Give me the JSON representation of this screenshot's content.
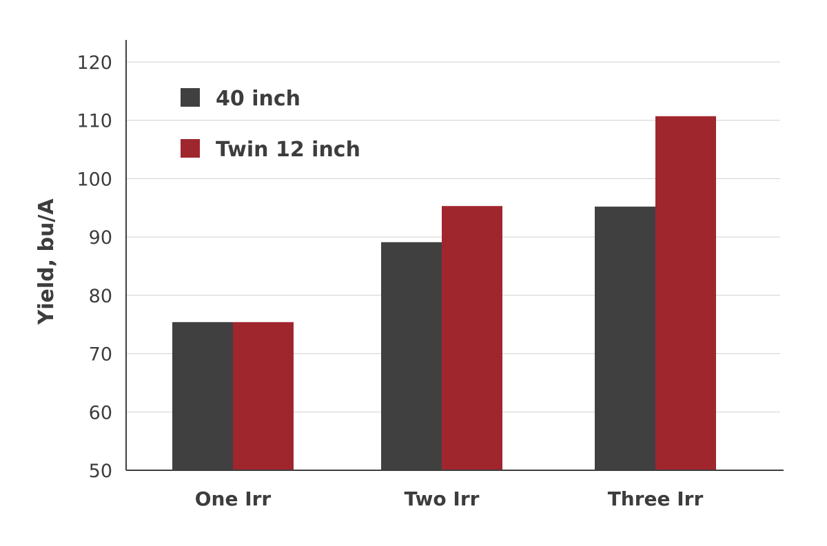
{
  "chart_data": {
    "type": "bar",
    "title": "",
    "xlabel": "",
    "ylabel": "Yield, bu/A",
    "ylim": [
      50,
      120
    ],
    "yticks": [
      50,
      60,
      70,
      80,
      90,
      100,
      110,
      120
    ],
    "grid": true,
    "legend_position": "top-left",
    "categories": [
      "One Irr",
      "Two Irr",
      "Three Irr"
    ],
    "series": [
      {
        "name": "40 inch",
        "color": "#404041",
        "values": [
          75.4,
          89.1,
          95.2
        ]
      },
      {
        "name": "Twin 12 inch",
        "color": "#a0262e",
        "values": [
          75.4,
          95.3,
          110.7
        ]
      }
    ]
  }
}
